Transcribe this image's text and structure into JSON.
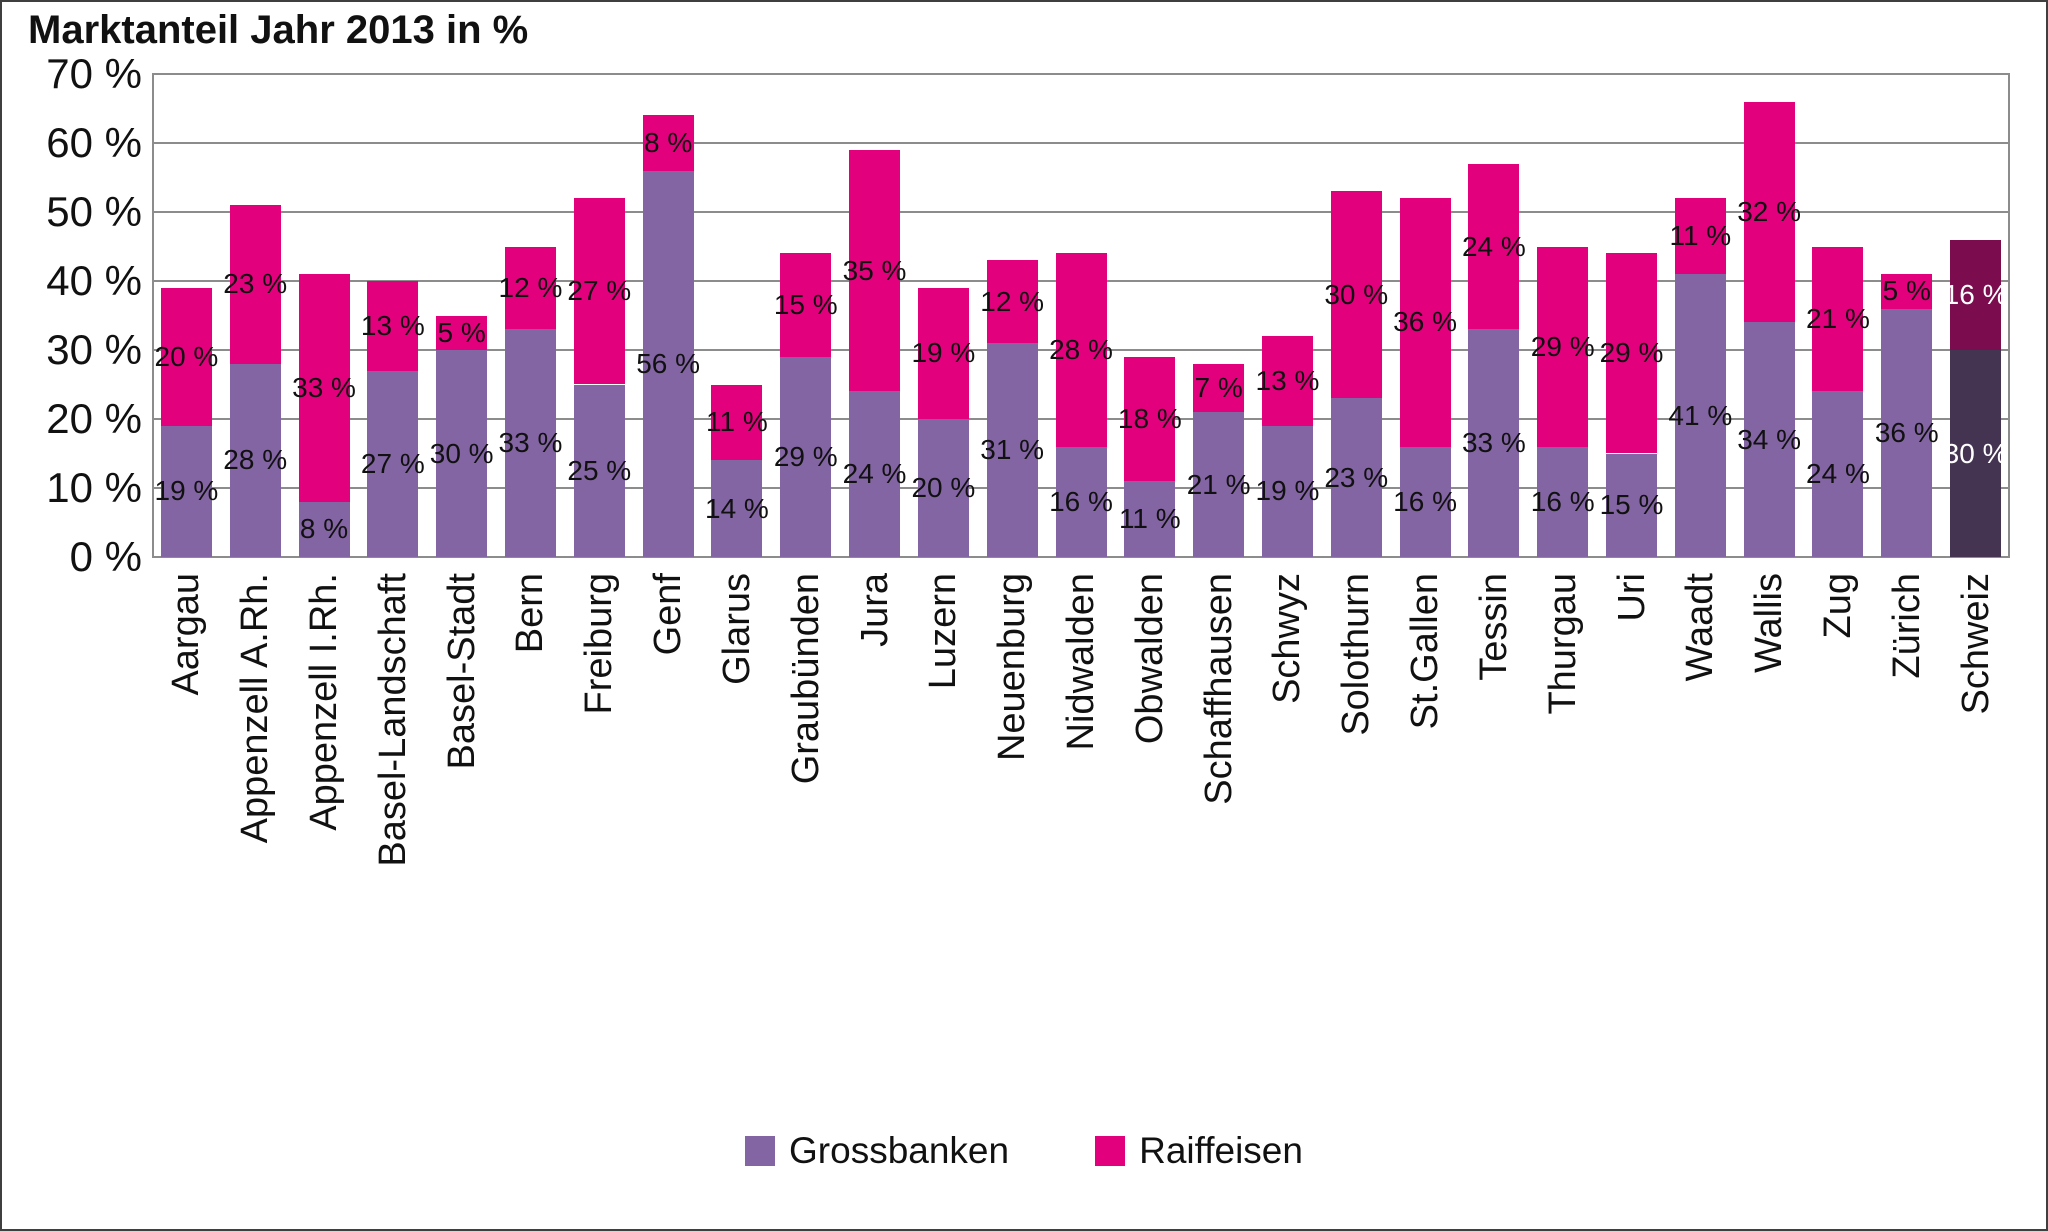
{
  "title": "Marktanteil Jahr 2013 in %",
  "colors": {
    "grossbanken": "#8465A4",
    "raiffeisen": "#E3007D",
    "schweiz_grossbanken": "#443351",
    "schweiz_raiffeisen": "#7B0D4F",
    "gridline": "#8c8c8c",
    "label_default": "#111111",
    "label_highlight": "#ffffff"
  },
  "legend": {
    "items": [
      {
        "label": "Grossbanken",
        "color": "#8465A4"
      },
      {
        "label": "Raiffeisen",
        "color": "#E3007D"
      }
    ]
  },
  "chart_data": {
    "type": "bar",
    "stacked": true,
    "title": "Marktanteil Jahr 2013 in %",
    "value_suffix": " %",
    "grid": true,
    "legend_position": "bottom",
    "ylim": [
      0,
      70
    ],
    "ytick_step": 10,
    "ytick_labels": [
      "0 %",
      "10 %",
      "20 %",
      "30 %",
      "40 %",
      "50 %",
      "60 %",
      "70 %"
    ],
    "categories": [
      "Aargau",
      "Appenzell A.Rh.",
      "Appenzell I.Rh.",
      "Basel-Landschaft",
      "Basel-Stadt",
      "Bern",
      "Freiburg",
      "Genf",
      "Glarus",
      "Graubünden",
      "Jura",
      "Luzern",
      "Neuenburg",
      "Nidwalden",
      "Obwalden",
      "Schaffhausen",
      "Schwyz",
      "Solothurn",
      "St.Gallen",
      "Tessin",
      "Thurgau",
      "Uri",
      "Waadt",
      "Wallis",
      "Zug",
      "Zürich",
      "Schweiz"
    ],
    "series": [
      {
        "name": "Grossbanken",
        "values": [
          19,
          28,
          8,
          27,
          30,
          33,
          25,
          56,
          14,
          29,
          24,
          20,
          31,
          16,
          11,
          21,
          19,
          23,
          16,
          33,
          16,
          15,
          41,
          34,
          24,
          36,
          30
        ]
      },
      {
        "name": "Raiffeisen",
        "values": [
          20,
          23,
          33,
          13,
          5,
          12,
          27,
          8,
          11,
          15,
          35,
          19,
          12,
          28,
          18,
          7,
          13,
          30,
          36,
          24,
          29,
          29,
          11,
          32,
          21,
          5,
          16
        ]
      }
    ],
    "highlight_category": "Schweiz"
  }
}
